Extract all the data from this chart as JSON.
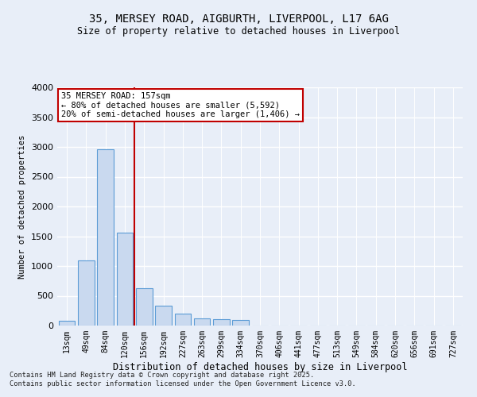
{
  "title_line1": "35, MERSEY ROAD, AIGBURTH, LIVERPOOL, L17 6AG",
  "title_line2": "Size of property relative to detached houses in Liverpool",
  "xlabel": "Distribution of detached houses by size in Liverpool",
  "ylabel": "Number of detached properties",
  "categories": [
    "13sqm",
    "49sqm",
    "84sqm",
    "120sqm",
    "156sqm",
    "192sqm",
    "227sqm",
    "263sqm",
    "299sqm",
    "334sqm",
    "370sqm",
    "406sqm",
    "441sqm",
    "477sqm",
    "513sqm",
    "549sqm",
    "584sqm",
    "620sqm",
    "656sqm",
    "691sqm",
    "727sqm"
  ],
  "values": [
    75,
    1100,
    2960,
    1560,
    630,
    340,
    200,
    120,
    110,
    100,
    0,
    0,
    0,
    0,
    0,
    0,
    0,
    0,
    0,
    0,
    0
  ],
  "bar_color": "#c9d9ef",
  "bar_edge_color": "#5b9bd5",
  "vline_x": 3.5,
  "vline_color": "#c00000",
  "annotation_title": "35 MERSEY ROAD: 157sqm",
  "annotation_line2": "← 80% of detached houses are smaller (5,592)",
  "annotation_line3": "20% of semi-detached houses are larger (1,406) →",
  "annotation_box_color": "#c00000",
  "ylim": [
    0,
    4000
  ],
  "yticks": [
    0,
    500,
    1000,
    1500,
    2000,
    2500,
    3000,
    3500,
    4000
  ],
  "background_color": "#e8eef8",
  "grid_color": "#ffffff",
  "footer_line1": "Contains HM Land Registry data © Crown copyright and database right 2025.",
  "footer_line2": "Contains public sector information licensed under the Open Government Licence v3.0."
}
